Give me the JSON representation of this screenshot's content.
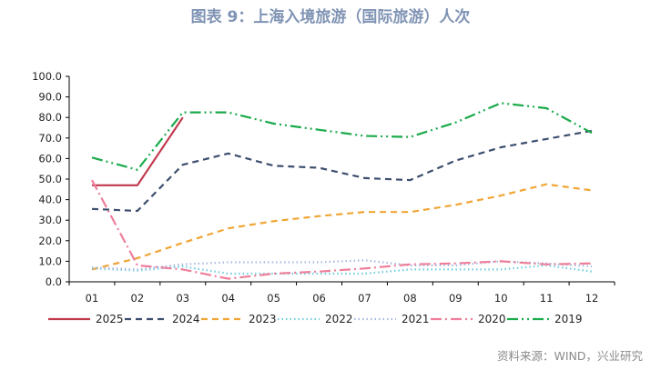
{
  "title": "图表 9：上海入境旅游（国际旅游）人次",
  "source": "资料来源：WIND，兴业研究",
  "colors": {
    "title": "#7f93b4",
    "axis": "#000000"
  },
  "chart_data": {
    "type": "line",
    "categories": [
      "01",
      "02",
      "03",
      "04",
      "05",
      "06",
      "07",
      "08",
      "09",
      "10",
      "11",
      "12"
    ],
    "ylim": [
      0,
      100
    ],
    "yticks": [
      "0.0",
      "10.0",
      "20.0",
      "30.0",
      "40.0",
      "50.0",
      "60.0",
      "70.0",
      "80.0",
      "90.0",
      "100.0"
    ],
    "grid": false,
    "legend_position": "bottom",
    "series": [
      {
        "name": "2025",
        "color": "#c0394b",
        "dash": "solid",
        "values": [
          47,
          47,
          80,
          null,
          null,
          null,
          null,
          null,
          null,
          null,
          null,
          null
        ]
      },
      {
        "name": "2024",
        "color": "#3c4e6e",
        "dash": "dash",
        "values": [
          35.5,
          34.5,
          57,
          62.5,
          56.5,
          55.5,
          50.5,
          49.5,
          59,
          65.5,
          69.5,
          73.5
        ]
      },
      {
        "name": "2023",
        "color": "#f0a535",
        "dash": "dash",
        "values": [
          6,
          11.5,
          19,
          26,
          29.5,
          32,
          34,
          34,
          37.5,
          42,
          47.5,
          44.5
        ]
      },
      {
        "name": "2022",
        "color": "#6fcde0",
        "dash": "dot",
        "values": [
          6.5,
          5.5,
          7.5,
          4,
          4,
          4,
          4,
          6,
          6,
          6,
          8,
          5
        ]
      },
      {
        "name": "2021",
        "color": "#a6b8e0",
        "dash": "dot",
        "values": [
          7,
          6,
          8.5,
          9.5,
          9.5,
          9.5,
          10.5,
          8,
          8,
          10,
          9,
          7.5
        ]
      },
      {
        "name": "2020",
        "color": "#ee7e9a",
        "dash": "dashdot",
        "values": [
          49.5,
          8,
          6,
          1.5,
          4,
          5,
          6.5,
          8.5,
          9,
          10,
          8.5,
          9
        ]
      },
      {
        "name": "2019",
        "color": "#1aaa4a",
        "dash": "dashdotdot",
        "values": [
          60.5,
          54.5,
          82.5,
          82.5,
          77,
          74,
          71,
          70.5,
          77.5,
          87,
          84.5,
          72.5
        ]
      }
    ]
  }
}
